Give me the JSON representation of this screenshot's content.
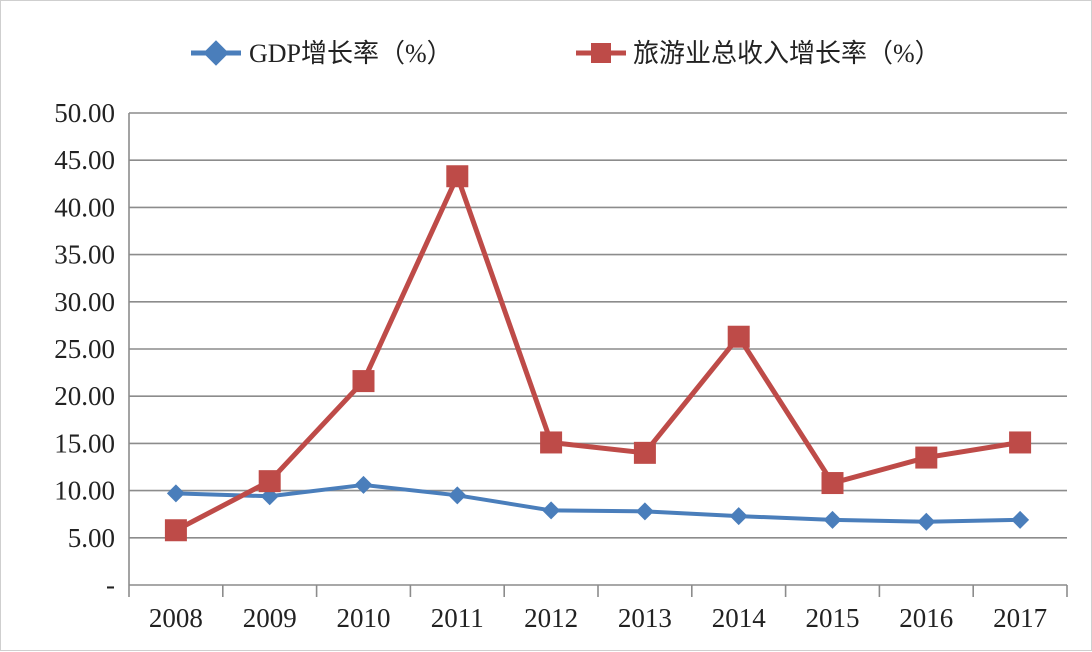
{
  "chart_data": {
    "type": "line",
    "title": "",
    "xlabel": "",
    "ylabel": "",
    "categories": [
      "2008",
      "2009",
      "2010",
      "2011",
      "2012",
      "2013",
      "2014",
      "2015",
      "2016",
      "2017"
    ],
    "ylim": [
      0,
      50
    ],
    "yticks": [
      0,
      5,
      10,
      15,
      20,
      25,
      30,
      35,
      40,
      45,
      50
    ],
    "ytick_labels": [
      "-",
      "5.00",
      "10.00",
      "15.00",
      "20.00",
      "25.00",
      "30.00",
      "35.00",
      "40.00",
      "45.00",
      "50.00"
    ],
    "grid": true,
    "legend": "top",
    "series": [
      {
        "name": "GDP增长率（%）",
        "color": "#4a7ebb",
        "marker": "diamond",
        "values": [
          9.7,
          9.4,
          10.6,
          9.5,
          7.9,
          7.8,
          7.3,
          6.9,
          6.7,
          6.9
        ]
      },
      {
        "name": "旅游业总收入增长率（%）",
        "color": "#be4b48",
        "marker": "square",
        "values": [
          5.8,
          11.0,
          21.6,
          43.3,
          15.1,
          14.0,
          26.3,
          10.8,
          13.5,
          15.1
        ]
      }
    ]
  }
}
